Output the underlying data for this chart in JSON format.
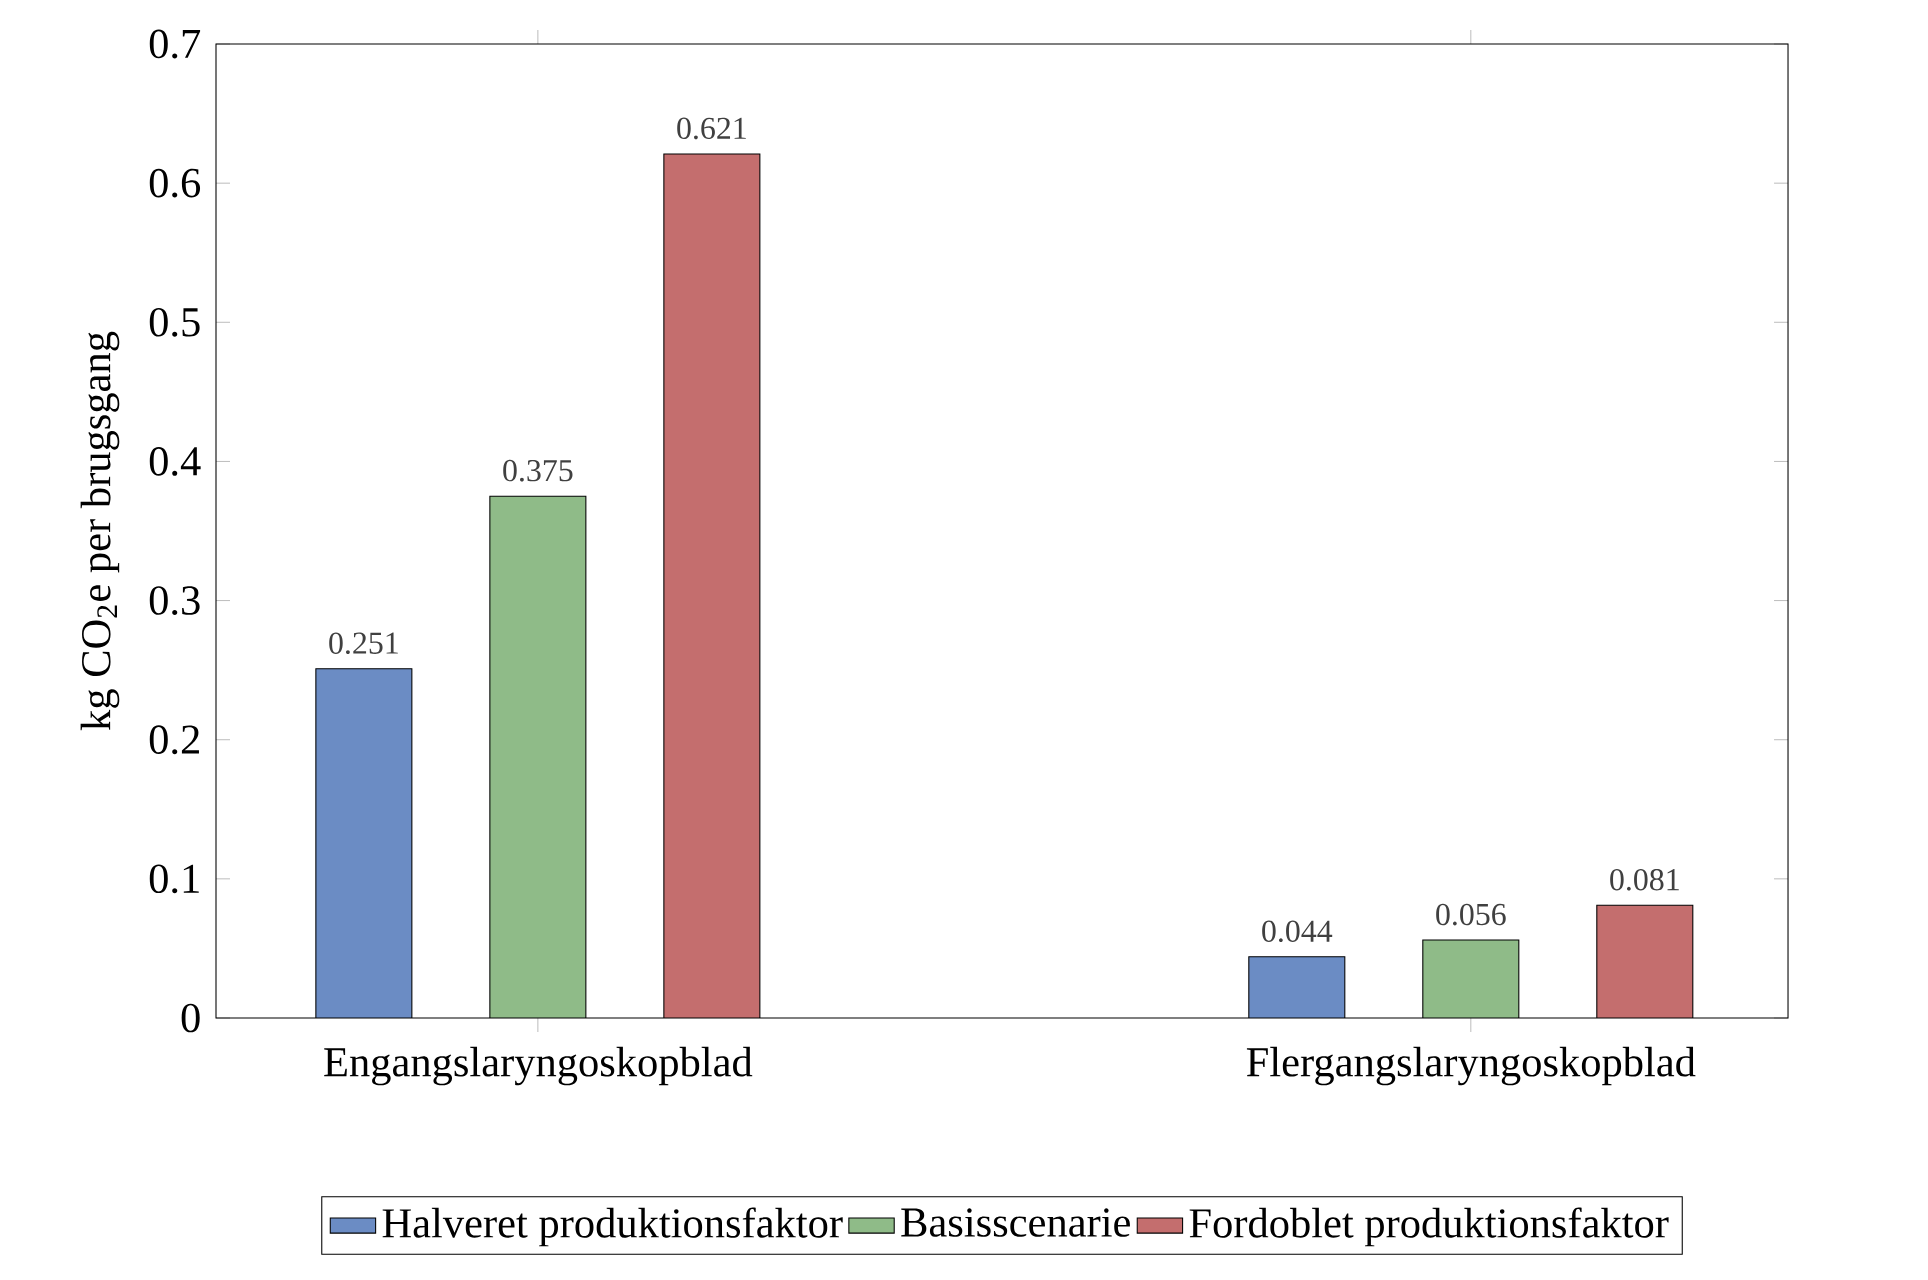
{
  "chart_data": {
    "type": "bar",
    "ylabel": "kg CO$_{2}$e per brugsgang",
    "categories": [
      "Engangslaryngoskopblad",
      "Flergangslaryngoskopblad"
    ],
    "series": [
      {
        "name": "Halveret produktionsfaktor",
        "color": "#6b8cc4",
        "values": [
          0.251,
          0.044
        ]
      },
      {
        "name": "Basisscenarie",
        "color": "#8fbb88",
        "values": [
          0.375,
          0.056
        ]
      },
      {
        "name": "Fordoblet produktionsfaktor",
        "color": "#c46e6e",
        "values": [
          0.621,
          0.081
        ]
      }
    ],
    "ylim": [
      0,
      0.7
    ],
    "yticks": [
      0,
      0.1,
      0.2,
      0.3,
      0.4,
      0.5,
      0.6,
      0.7
    ],
    "data_labels": true,
    "legend": "bottom"
  }
}
